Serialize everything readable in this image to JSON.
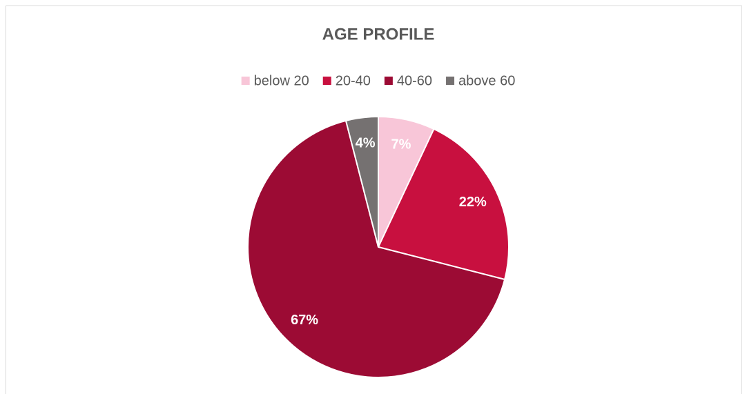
{
  "chart_data": {
    "type": "pie",
    "title": "AGE PROFILE",
    "categories": [
      "below 20",
      "20-40",
      "40-60",
      "above 60"
    ],
    "values": [
      7,
      22,
      67,
      4
    ],
    "value_labels": [
      "7%",
      "22%",
      "67%",
      "4%"
    ],
    "colors": [
      "#f8c6d8",
      "#c8103f",
      "#9c0b34",
      "#757171"
    ],
    "legend": "top"
  }
}
